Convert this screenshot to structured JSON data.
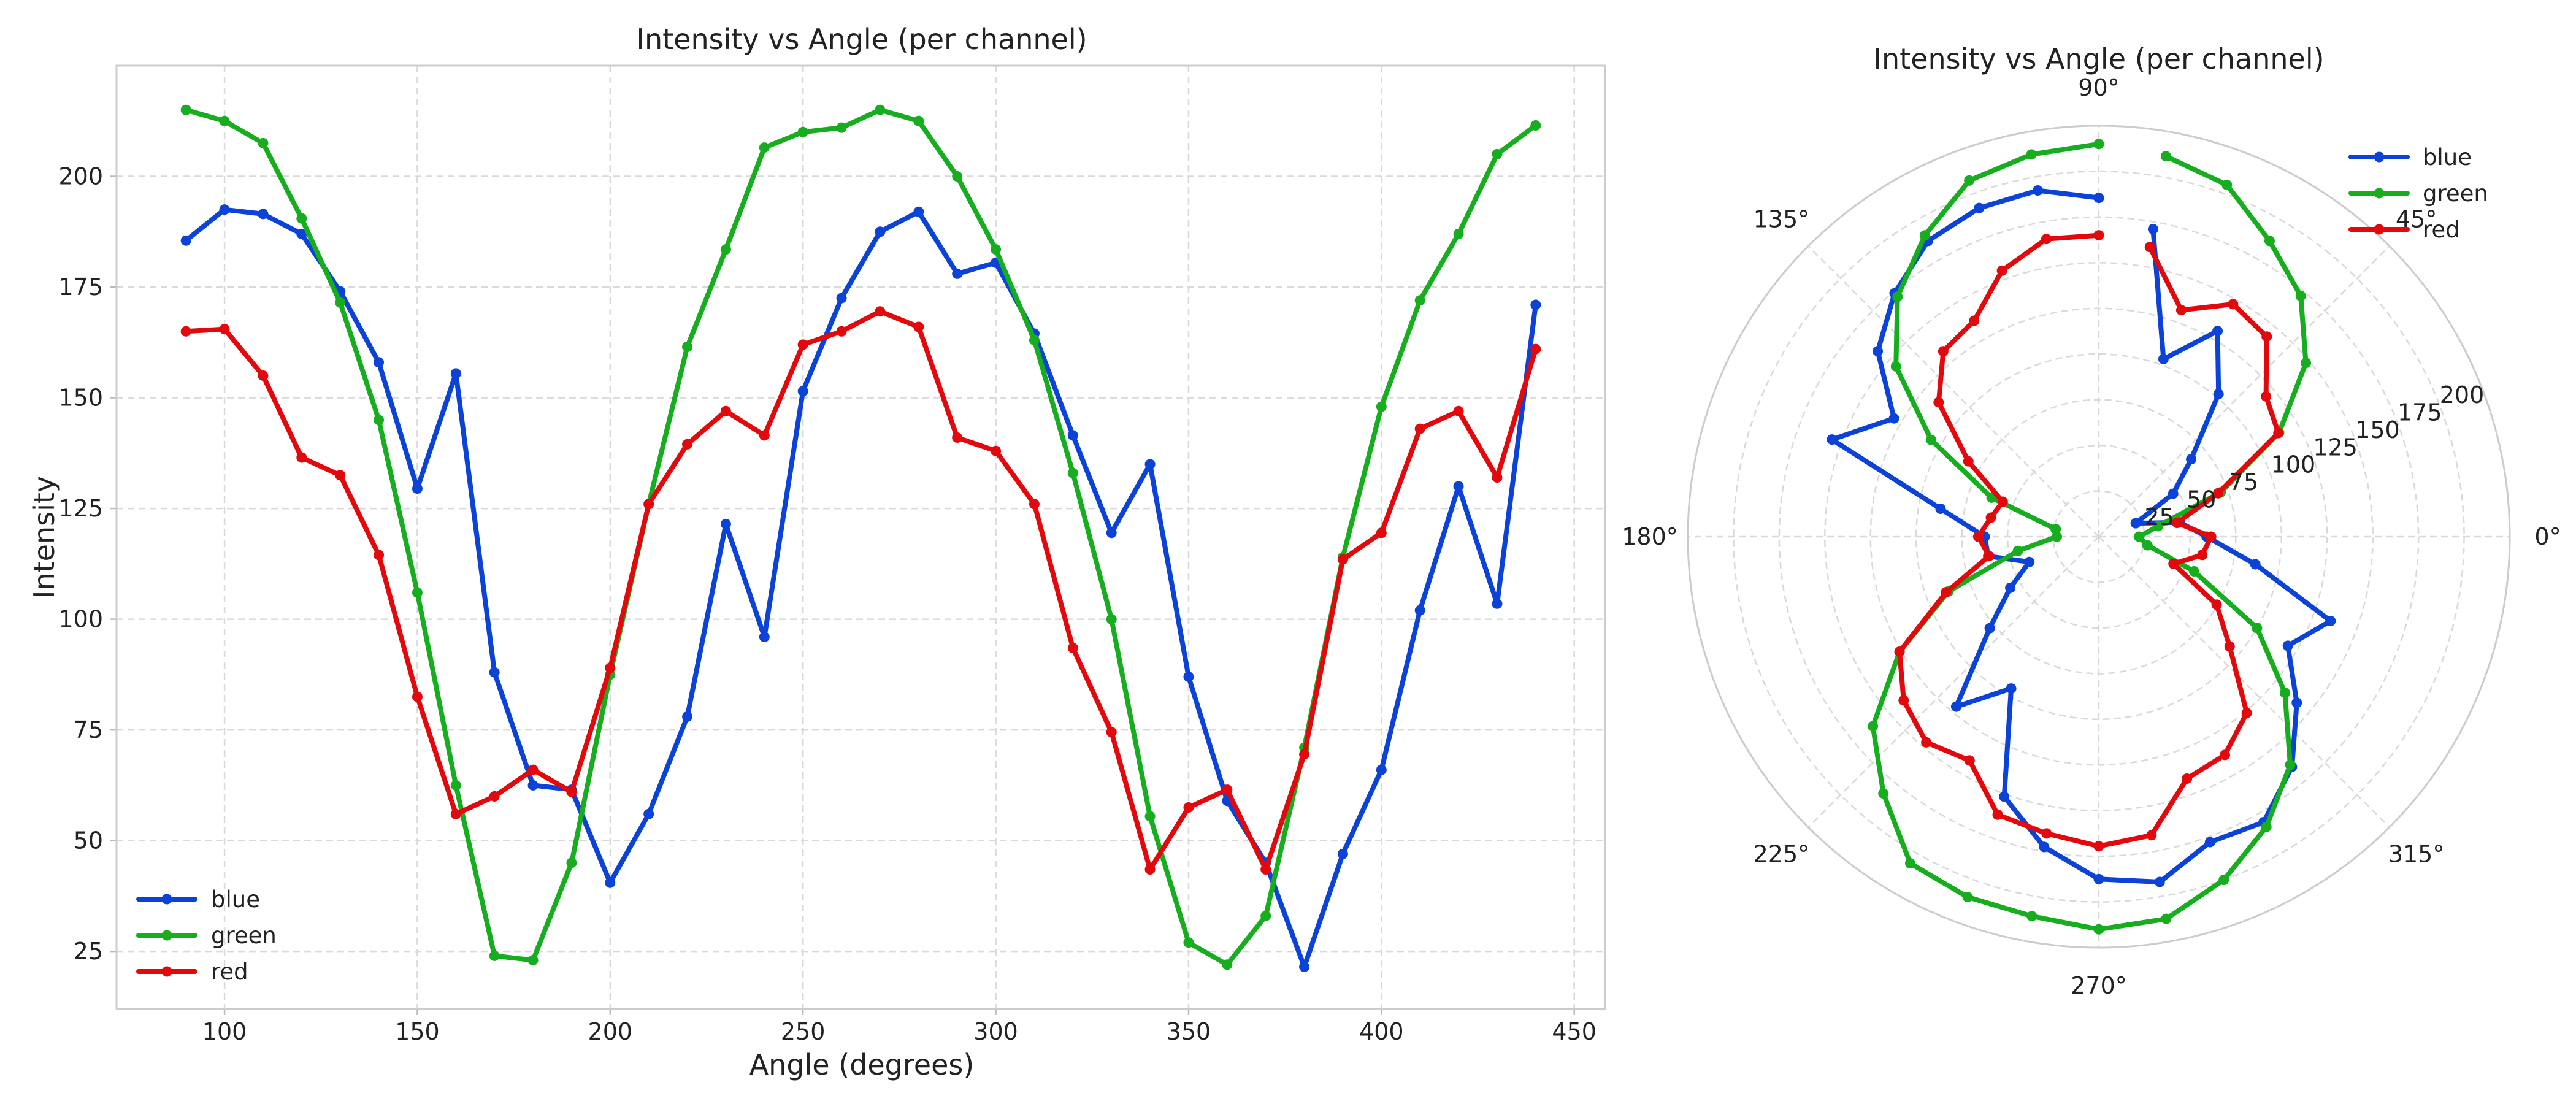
{
  "chart_data": [
    {
      "type": "line",
      "title": "Intensity vs Angle (per channel)",
      "xlabel": "Angle (degrees)",
      "ylabel": "Intensity",
      "xlim": [
        72,
        458
      ],
      "ylim": [
        12,
        225
      ],
      "xticks": [
        100,
        150,
        200,
        250,
        300,
        350,
        400,
        450
      ],
      "yticks": [
        25,
        50,
        75,
        100,
        125,
        150,
        175,
        200
      ],
      "grid": true,
      "legend": "lower-left",
      "x": [
        90,
        100,
        110,
        120,
        130,
        140,
        150,
        160,
        170,
        180,
        190,
        200,
        210,
        220,
        230,
        240,
        250,
        260,
        270,
        280,
        290,
        300,
        310,
        320,
        330,
        340,
        350,
        360,
        370,
        380,
        390,
        400,
        410,
        420,
        430,
        440
      ],
      "series": [
        {
          "name": "blue",
          "color": "#0b43d8",
          "values": [
            185.5,
            192.5,
            191.5,
            187,
            174,
            158,
            129.5,
            155.5,
            88,
            62.5,
            61.5,
            40.5,
            56,
            78,
            121.5,
            96,
            151.5,
            172.5,
            187.5,
            192,
            178,
            180.5,
            164.5,
            141.5,
            119.5,
            135,
            87,
            59,
            45,
            21.5,
            47,
            66,
            102,
            130,
            103.5,
            171
          ]
        },
        {
          "name": "green",
          "color": "#16ad1e",
          "values": [
            215,
            212.5,
            207.5,
            190.5,
            171.5,
            145,
            106,
            62.5,
            24,
            23,
            45,
            87.5,
            126,
            161.5,
            183.5,
            206.5,
            210,
            211,
            215,
            212.5,
            200,
            183.5,
            163,
            133,
            100,
            55.5,
            27,
            22,
            33,
            71,
            114,
            148,
            172,
            187,
            205,
            211.5
          ]
        },
        {
          "name": "red",
          "color": "#e3080b",
          "values": [
            165,
            165.5,
            155,
            136.5,
            132.5,
            114.5,
            82.5,
            56,
            60,
            66,
            61,
            89,
            126,
            139.5,
            147,
            141.5,
            162,
            165,
            169.5,
            166,
            141,
            138,
            126,
            93.5,
            74.5,
            43.5,
            57.5,
            61.5,
            43.5,
            69.5,
            113.5,
            119.5,
            143,
            147,
            132,
            161
          ]
        }
      ]
    },
    {
      "type": "polar-line",
      "title": "Intensity vs Angle (per channel)",
      "theta_ticks": [
        "0°",
        "45°",
        "90°",
        "135°",
        "180°",
        "225°",
        "270°",
        "315°"
      ],
      "r_ticks": [
        "25",
        "50",
        "75",
        "100",
        "125",
        "150",
        "175",
        "200"
      ],
      "rlim": [
        0,
        225
      ],
      "grid": true,
      "legend": "top-right",
      "theta_deg": [
        90,
        100,
        110,
        120,
        130,
        140,
        150,
        160,
        170,
        180,
        190,
        200,
        210,
        220,
        230,
        240,
        250,
        260,
        270,
        280,
        290,
        300,
        310,
        320,
        330,
        340,
        350,
        360,
        370,
        380,
        390,
        400,
        410,
        420,
        430,
        440
      ]
    }
  ]
}
